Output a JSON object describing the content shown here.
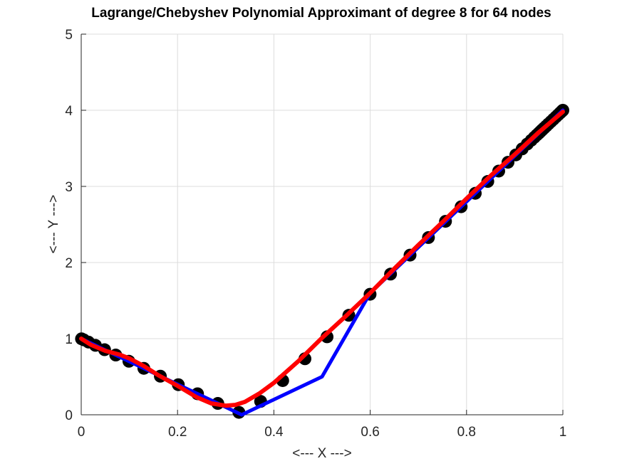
{
  "chart_data": {
    "type": "line",
    "title": "Lagrange/Chebyshev Polynomial Approximant of degree 8 for 64 nodes",
    "xlabel": "<--- X --->",
    "ylabel": "<--- Y --->",
    "xlim": [
      0,
      1
    ],
    "ylim": [
      0,
      5
    ],
    "xticks": [
      0,
      0.2,
      0.4,
      0.6,
      0.8,
      1
    ],
    "yticks": [
      0,
      1,
      2,
      3,
      4,
      5
    ],
    "xtick_labels": [
      "0",
      "0.2",
      "0.4",
      "0.6",
      "0.8",
      "1"
    ],
    "ytick_labels": [
      "0",
      "1",
      "2",
      "3",
      "4",
      "5"
    ],
    "grid": true,
    "legend": "none",
    "series": [
      {
        "style": "markers",
        "color": "#000000",
        "x": [
          0.0006,
          0.0054,
          0.0151,
          0.0295,
          0.0485,
          0.0717,
          0.099,
          0.13,
          0.1643,
          0.2016,
          0.2415,
          0.2836,
          0.3274,
          0.3725,
          0.4183,
          0.4645,
          0.5104,
          0.5556,
          0.5997,
          0.6422,
          0.6827,
          0.7209,
          0.7563,
          0.7888,
          0.8181,
          0.8441,
          0.8668,
          0.8861,
          0.9023,
          0.9155,
          0.9261,
          0.9344,
          0.9408,
          0.9458,
          0.9499,
          0.9535,
          0.9571,
          0.961,
          0.9653,
          0.9701,
          0.9752,
          0.9804,
          0.9855,
          0.9902,
          0.9942,
          0.9973,
          0.9993,
          1.0
        ],
        "y": [
          0.998,
          0.984,
          0.955,
          0.912,
          0.855,
          0.785,
          0.703,
          0.61,
          0.507,
          0.395,
          0.276,
          0.149,
          0.032,
          0.176,
          0.449,
          0.736,
          1.024,
          1.307,
          1.583,
          1.848,
          2.097,
          2.328,
          2.541,
          2.733,
          2.909,
          3.065,
          3.201,
          3.317,
          3.414,
          3.493,
          3.557,
          3.606,
          3.645,
          3.675,
          3.699,
          3.721,
          3.743,
          3.766,
          3.792,
          3.821,
          3.851,
          3.882,
          3.913,
          3.941,
          3.965,
          3.984,
          3.996,
          4.0
        ]
      },
      {
        "style": "line",
        "color": "#0000ff",
        "x": [
          0,
          0.05,
          0.1,
          0.15,
          0.2,
          0.25,
          0.3,
          0.3333,
          0.36,
          0.4,
          0.5,
          0.6,
          0.7,
          0.8,
          0.9,
          1.0
        ],
        "y": [
          1.0,
          0.85,
          0.7,
          0.55,
          0.4,
          0.25,
          0.1,
          0.0,
          0.08,
          0.2,
          0.5,
          1.6,
          2.2,
          2.8,
          3.4,
          4.0
        ]
      },
      {
        "style": "line",
        "color": "#ff0000",
        "x": [
          0,
          0.02,
          0.05,
          0.08,
          0.1,
          0.13,
          0.16,
          0.2,
          0.24,
          0.27,
          0.3,
          0.32,
          0.34,
          0.37,
          0.4,
          0.45,
          0.5,
          0.55,
          0.6,
          0.65,
          0.7,
          0.75,
          0.8,
          0.85,
          0.9,
          0.95,
          1.0
        ],
        "y": [
          1.0,
          0.92,
          0.84,
          0.79,
          0.74,
          0.64,
          0.52,
          0.38,
          0.23,
          0.15,
          0.12,
          0.13,
          0.17,
          0.28,
          0.42,
          0.7,
          1.01,
          1.3,
          1.6,
          1.92,
          2.23,
          2.53,
          2.84,
          3.14,
          3.42,
          3.71,
          3.98
        ]
      }
    ]
  }
}
